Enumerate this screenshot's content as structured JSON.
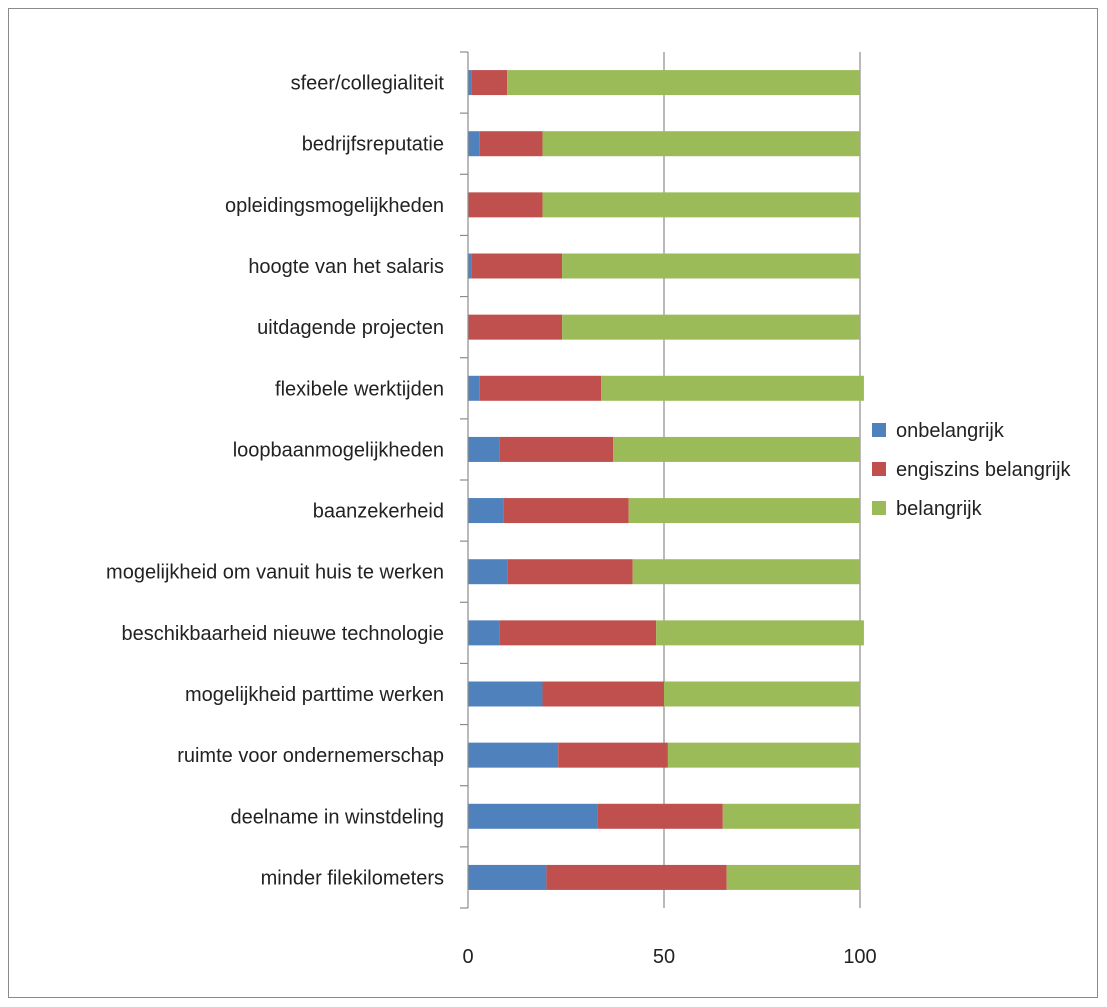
{
  "chart_data": {
    "type": "bar",
    "orientation": "horizontal",
    "stacked": true,
    "categories": [
      "sfeer/collegialiteit",
      "bedrijfsreputatie",
      "opleidingsmogelijkheden",
      "hoogte van het salaris",
      "uitdagende projecten",
      "flexibele werktijden",
      "loopbaanmogelijkheden",
      "baanzekerheid",
      "mogelijkheid om vanuit huis te werken",
      "beschikbaarheid nieuwe technologie",
      "mogelijkheid parttime werken",
      "ruimte voor ondernemerschap",
      "deelname in winstdeling",
      "minder filekilometers"
    ],
    "series": [
      {
        "name": "onbelangrijk",
        "color": "#4f81bd",
        "values": [
          1,
          3,
          0,
          1,
          0,
          3,
          8,
          9,
          10,
          8,
          19,
          23,
          33,
          20
        ]
      },
      {
        "name": "engiszins belangrijk",
        "color": "#c0504d",
        "values": [
          9,
          16,
          19,
          23,
          24,
          31,
          29,
          32,
          32,
          40,
          31,
          28,
          32,
          46
        ]
      },
      {
        "name": "belangrijk",
        "color": "#9bbb59",
        "values": [
          90,
          81,
          81,
          76,
          76,
          67,
          63,
          59,
          58,
          53,
          50,
          49,
          35,
          34
        ]
      }
    ],
    "xlim": [
      0,
      100
    ],
    "xticks": [
      0,
      50,
      100
    ],
    "grid": "vertical",
    "legend": "right",
    "title": "",
    "xlabel": "",
    "ylabel": ""
  }
}
